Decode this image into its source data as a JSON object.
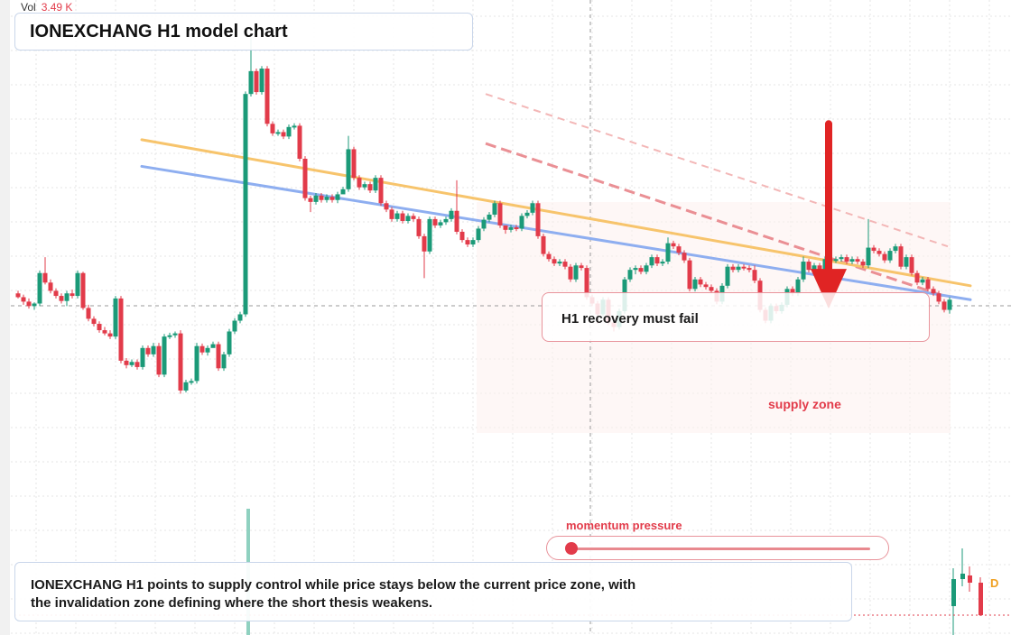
{
  "header": {
    "vol_label": "Vol",
    "vol_value": "3.49 K"
  },
  "title": "IONEXCHANG H1 model chart",
  "callout": "H1 recovery must fail",
  "zone_label": "supply zone",
  "momentum": {
    "label": "momentum pressure",
    "level": 0.03
  },
  "summary": {
    "line1": "IONEXCHANG H1 points to supply control while price stays below the current price zone, with",
    "line2": "the invalidation zone defining where the short thesis weakens."
  },
  "badge": "D",
  "colors": {
    "up": "#1b9a78",
    "down": "#e23b4a",
    "resistance_line": "#f7c46c",
    "support_line": "#8eaef0",
    "arrow": "#e02424"
  },
  "chart_data": {
    "type": "candlestick",
    "title": "IONEXCHANG H1 model chart",
    "ylim": [
      0,
      1000
    ],
    "candles": [
      [
        20,
        462,
        468,
        458,
        470
      ],
      [
        26,
        468,
        475,
        464,
        480
      ],
      [
        32,
        475,
        482,
        470,
        486
      ],
      [
        38,
        482,
        478,
        476,
        488
      ],
      [
        44,
        478,
        430,
        426,
        482
      ],
      [
        50,
        430,
        445,
        405,
        448
      ],
      [
        56,
        445,
        458,
        440,
        462
      ],
      [
        62,
        458,
        466,
        454,
        470
      ],
      [
        68,
        466,
        474,
        462,
        478
      ],
      [
        74,
        474,
        462,
        458,
        482
      ],
      [
        80,
        462,
        466,
        456,
        470
      ],
      [
        86,
        466,
        430,
        426,
        470
      ],
      [
        92,
        430,
        485,
        428,
        488
      ],
      [
        98,
        485,
        502,
        480,
        506
      ],
      [
        104,
        502,
        510,
        498,
        514
      ],
      [
        110,
        510,
        520,
        506,
        524
      ],
      [
        116,
        520,
        525,
        515,
        528
      ],
      [
        122,
        525,
        530,
        520,
        534
      ],
      [
        128,
        530,
        470,
        466,
        534
      ],
      [
        134,
        470,
        568,
        466,
        572
      ],
      [
        140,
        568,
        575,
        564,
        580
      ],
      [
        146,
        575,
        570,
        566,
        578
      ],
      [
        152,
        570,
        578,
        566,
        582
      ],
      [
        158,
        578,
        548,
        544,
        582
      ],
      [
        164,
        548,
        558,
        544,
        562
      ],
      [
        170,
        558,
        545,
        540,
        562
      ],
      [
        176,
        545,
        590,
        540,
        594
      ],
      [
        182,
        590,
        530,
        526,
        594
      ],
      [
        188,
        530,
        528,
        524,
        534
      ],
      [
        194,
        528,
        525,
        522,
        532
      ],
      [
        200,
        525,
        615,
        520,
        620
      ],
      [
        206,
        615,
        602,
        598,
        618
      ],
      [
        212,
        602,
        600,
        596,
        606
      ],
      [
        218,
        600,
        545,
        540,
        604
      ],
      [
        224,
        545,
        555,
        541,
        559
      ],
      [
        230,
        555,
        548,
        544,
        560
      ],
      [
        236,
        548,
        542,
        538,
        546
      ],
      [
        242,
        542,
        580,
        538,
        584
      ],
      [
        248,
        580,
        558,
        554,
        584
      ],
      [
        254,
        558,
        522,
        518,
        562
      ],
      [
        260,
        522,
        505,
        501,
        526
      ],
      [
        266,
        505,
        495,
        491,
        509
      ],
      [
        272,
        495,
        148,
        144,
        499
      ],
      [
        278,
        148,
        112,
        60,
        152
      ],
      [
        284,
        112,
        145,
        108,
        149
      ],
      [
        290,
        145,
        108,
        104,
        149
      ],
      [
        296,
        108,
        195,
        104,
        199
      ],
      [
        302,
        195,
        210,
        191,
        214
      ],
      [
        308,
        210,
        208,
        204,
        214
      ],
      [
        314,
        208,
        215,
        204,
        219
      ],
      [
        320,
        215,
        200,
        196,
        219
      ],
      [
        326,
        200,
        198,
        194,
        204
      ],
      [
        332,
        198,
        250,
        194,
        254
      ],
      [
        338,
        250,
        312,
        246,
        316
      ],
      [
        344,
        312,
        318,
        308,
        334
      ],
      [
        350,
        318,
        308,
        304,
        322
      ],
      [
        356,
        308,
        315,
        304,
        319
      ],
      [
        362,
        315,
        310,
        306,
        319
      ],
      [
        368,
        310,
        315,
        306,
        319
      ],
      [
        374,
        315,
        306,
        302,
        320
      ],
      [
        380,
        306,
        298,
        294,
        302
      ],
      [
        386,
        298,
        235,
        214,
        302
      ],
      [
        392,
        235,
        280,
        231,
        284
      ],
      [
        398,
        280,
        295,
        276,
        299
      ],
      [
        404,
        295,
        290,
        286,
        299
      ],
      [
        410,
        290,
        300,
        286,
        304
      ],
      [
        416,
        300,
        280,
        276,
        304
      ],
      [
        422,
        280,
        320,
        276,
        324
      ],
      [
        428,
        320,
        330,
        316,
        334
      ],
      [
        434,
        330,
        345,
        326,
        349
      ],
      [
        440,
        345,
        336,
        332,
        349
      ],
      [
        446,
        336,
        348,
        332,
        352
      ],
      [
        452,
        348,
        340,
        336,
        352
      ],
      [
        458,
        340,
        345,
        336,
        349
      ],
      [
        464,
        345,
        372,
        341,
        376
      ],
      [
        470,
        372,
        396,
        368,
        438
      ],
      [
        476,
        396,
        345,
        341,
        400
      ],
      [
        482,
        345,
        355,
        341,
        359
      ],
      [
        488,
        355,
        350,
        346,
        359
      ],
      [
        494,
        350,
        345,
        341,
        354
      ],
      [
        500,
        345,
        332,
        328,
        349
      ],
      [
        506,
        332,
        365,
        284,
        369
      ],
      [
        512,
        365,
        378,
        361,
        382
      ],
      [
        518,
        378,
        385,
        374,
        389
      ],
      [
        524,
        385,
        378,
        374,
        389
      ],
      [
        530,
        378,
        360,
        356,
        382
      ],
      [
        536,
        360,
        346,
        342,
        364
      ],
      [
        542,
        346,
        338,
        334,
        350
      ],
      [
        548,
        338,
        320,
        316,
        342
      ],
      [
        554,
        320,
        355,
        316,
        359
      ],
      [
        560,
        355,
        362,
        358,
        368
      ],
      [
        566,
        362,
        358,
        354,
        366
      ],
      [
        572,
        358,
        360,
        354,
        364
      ],
      [
        578,
        360,
        340,
        336,
        364
      ],
      [
        584,
        340,
        335,
        331,
        344
      ],
      [
        590,
        335,
        320,
        316,
        339
      ],
      [
        596,
        320,
        372,
        316,
        376
      ],
      [
        602,
        372,
        400,
        368,
        404
      ],
      [
        608,
        400,
        408,
        396,
        412
      ],
      [
        614,
        408,
        415,
        404,
        419
      ],
      [
        620,
        415,
        412,
        408,
        419
      ],
      [
        626,
        412,
        420,
        408,
        424
      ],
      [
        632,
        420,
        440,
        416,
        444
      ],
      [
        638,
        440,
        418,
        414,
        444
      ],
      [
        644,
        418,
        422,
        414,
        426
      ],
      [
        650,
        422,
        468,
        418,
        472
      ],
      [
        656,
        468,
        478,
        464,
        482
      ],
      [
        662,
        478,
        495,
        474,
        510
      ],
      [
        668,
        495,
        472,
        468,
        499
      ],
      [
        674,
        472,
        508,
        468,
        512
      ],
      [
        680,
        508,
        515,
        504,
        522
      ],
      [
        686,
        515,
        490,
        486,
        519
      ],
      [
        692,
        490,
        440,
        436,
        494
      ],
      [
        698,
        440,
        425,
        421,
        444
      ],
      [
        704,
        425,
        422,
        418,
        432
      ],
      [
        710,
        422,
        428,
        418,
        432
      ],
      [
        716,
        428,
        418,
        414,
        432
      ],
      [
        722,
        418,
        405,
        401,
        422
      ],
      [
        728,
        405,
        415,
        401,
        419
      ],
      [
        734,
        415,
        412,
        408,
        419
      ],
      [
        740,
        412,
        383,
        374,
        416
      ],
      [
        746,
        383,
        388,
        379,
        392
      ],
      [
        752,
        388,
        398,
        384,
        402
      ],
      [
        758,
        398,
        410,
        394,
        414
      ],
      [
        764,
        410,
        455,
        406,
        459
      ],
      [
        770,
        455,
        440,
        436,
        459
      ],
      [
        776,
        440,
        448,
        436,
        452
      ],
      [
        782,
        448,
        452,
        444,
        456
      ],
      [
        788,
        452,
        458,
        448,
        462
      ],
      [
        794,
        458,
        475,
        454,
        479
      ],
      [
        800,
        475,
        450,
        446,
        479
      ],
      [
        806,
        450,
        420,
        416,
        454
      ],
      [
        812,
        420,
        425,
        416,
        429
      ],
      [
        818,
        425,
        420,
        416,
        429
      ],
      [
        824,
        420,
        422,
        416,
        426
      ],
      [
        830,
        422,
        425,
        418,
        429
      ],
      [
        836,
        425,
        442,
        418,
        446
      ],
      [
        842,
        442,
        488,
        438,
        492
      ],
      [
        848,
        488,
        505,
        484,
        509
      ],
      [
        854,
        505,
        482,
        478,
        509
      ],
      [
        860,
        482,
        490,
        478,
        494
      ],
      [
        866,
        490,
        480,
        476,
        494
      ],
      [
        872,
        480,
        455,
        451,
        484
      ],
      [
        878,
        455,
        462,
        451,
        466
      ],
      [
        884,
        462,
        440,
        436,
        466
      ],
      [
        890,
        440,
        412,
        404,
        444
      ],
      [
        896,
        412,
        425,
        408,
        429
      ],
      [
        902,
        425,
        418,
        414,
        429
      ],
      [
        908,
        418,
        425,
        414,
        429
      ],
      [
        914,
        425,
        408,
        404,
        429
      ],
      [
        920,
        408,
        410,
        404,
        414
      ],
      [
        926,
        410,
        408,
        404,
        414
      ],
      [
        932,
        408,
        405,
        401,
        412
      ],
      [
        938,
        405,
        412,
        401,
        416
      ],
      [
        944,
        412,
        408,
        404,
        416
      ],
      [
        950,
        408,
        412,
        404,
        416
      ],
      [
        956,
        412,
        418,
        408,
        422
      ],
      [
        962,
        418,
        390,
        345,
        422
      ],
      [
        968,
        390,
        395,
        386,
        399
      ],
      [
        974,
        395,
        400,
        391,
        404
      ],
      [
        980,
        400,
        410,
        396,
        414
      ],
      [
        986,
        410,
        395,
        391,
        414
      ],
      [
        992,
        395,
        388,
        384,
        399
      ],
      [
        998,
        388,
        420,
        384,
        424
      ],
      [
        1004,
        420,
        405,
        401,
        424
      ],
      [
        1010,
        405,
        430,
        401,
        434
      ],
      [
        1016,
        430,
        445,
        426,
        449
      ],
      [
        1022,
        445,
        440,
        436,
        449
      ],
      [
        1028,
        440,
        455,
        436,
        459
      ],
      [
        1034,
        455,
        462,
        451,
        466
      ],
      [
        1040,
        462,
        475,
        458,
        479
      ],
      [
        1046,
        475,
        488,
        471,
        492
      ],
      [
        1052,
        488,
        472,
        468,
        494
      ]
    ],
    "trend_lines": [
      {
        "type": "resistance",
        "points": [
          [
            157,
            220
          ],
          [
            1075,
            450
          ]
        ]
      },
      {
        "type": "support",
        "points": [
          [
            157,
            262
          ],
          [
            1075,
            472
          ]
        ]
      }
    ],
    "projection_lines": [
      {
        "points": [
          [
            538,
            148
          ],
          [
            1050,
            388
          ]
        ]
      },
      {
        "points": [
          [
            538,
            226
          ],
          [
            1050,
            468
          ]
        ]
      }
    ],
    "arrow": {
      "from": [
        918,
        195
      ],
      "to": [
        918,
        486
      ]
    },
    "annotations": [
      "H1 recovery must fail",
      "supply zone",
      "momentum pressure"
    ]
  }
}
